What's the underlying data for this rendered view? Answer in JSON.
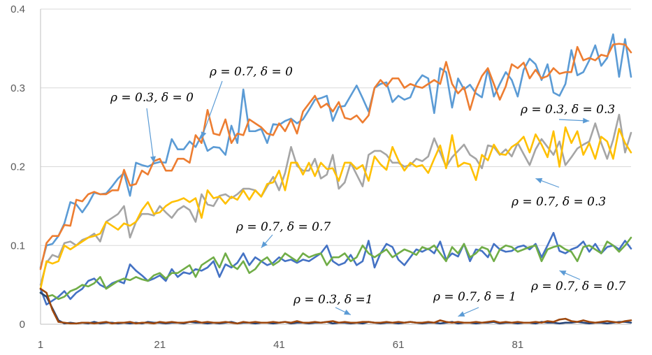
{
  "chart_data": {
    "type": "line",
    "x_start": 1,
    "x_count": 100,
    "x_ticks": [
      "1",
      "21",
      "41",
      "61",
      "81"
    ],
    "y_ticks": [
      "0",
      "0.1",
      "0.2",
      "0.3",
      "0.4"
    ],
    "ylim": [
      0,
      0.4
    ],
    "grid": true,
    "legend": "none",
    "series": [
      {
        "color": "#5b9bd5",
        "values": [
          0.072,
          0.1,
          0.102,
          0.112,
          0.128,
          0.155,
          0.152,
          0.142,
          0.153,
          0.167,
          0.165,
          0.166,
          0.175,
          0.185,
          0.192,
          0.163,
          0.205,
          0.202,
          0.2,
          0.204,
          0.206,
          0.205,
          0.235,
          0.222,
          0.222,
          0.232,
          0.225,
          0.24,
          0.22,
          0.225,
          0.224,
          0.215,
          0.252,
          0.23,
          0.298,
          0.245,
          0.245,
          0.248,
          0.23,
          0.254,
          0.253,
          0.258,
          0.261,
          0.255,
          0.26,
          0.272,
          0.285,
          0.287,
          0.29,
          0.258,
          0.276,
          0.277,
          0.29,
          0.303,
          0.287,
          0.27,
          0.3,
          0.305,
          0.307,
          0.282,
          0.29,
          0.285,
          0.288,
          0.306,
          0.316,
          0.312,
          0.268,
          0.325,
          0.32,
          0.275,
          0.312,
          0.298,
          0.304,
          0.293,
          0.288,
          0.324,
          0.289,
          0.305,
          0.32,
          0.31,
          0.289,
          0.323,
          0.337,
          0.33,
          0.31,
          0.33,
          0.294,
          0.29,
          0.305,
          0.348,
          0.316,
          0.32,
          0.335,
          0.354,
          0.328,
          0.338,
          0.368,
          0.314,
          0.362,
          0.314
        ]
      },
      {
        "color": "#ed7d31",
        "values": [
          0.07,
          0.103,
          0.112,
          0.112,
          0.126,
          0.125,
          0.158,
          0.156,
          0.165,
          0.168,
          0.165,
          0.165,
          0.17,
          0.17,
          0.196,
          0.176,
          0.178,
          0.195,
          0.19,
          0.207,
          0.21,
          0.195,
          0.195,
          0.21,
          0.21,
          0.205,
          0.24,
          0.23,
          0.272,
          0.242,
          0.24,
          0.26,
          0.23,
          0.242,
          0.24,
          0.26,
          0.255,
          0.25,
          0.242,
          0.24,
          0.255,
          0.245,
          0.26,
          0.242,
          0.27,
          0.28,
          0.29,
          0.275,
          0.28,
          0.27,
          0.282,
          0.262,
          0.26,
          0.265,
          0.256,
          0.265,
          0.3,
          0.31,
          0.302,
          0.312,
          0.312,
          0.3,
          0.305,
          0.302,
          0.3,
          0.305,
          0.31,
          0.305,
          0.333,
          0.305,
          0.293,
          0.301,
          0.272,
          0.298,
          0.315,
          0.325,
          0.305,
          0.285,
          0.302,
          0.33,
          0.325,
          0.332,
          0.312,
          0.323,
          0.312,
          0.315,
          0.325,
          0.318,
          0.32,
          0.32,
          0.352,
          0.335,
          0.338,
          0.335,
          0.342,
          0.34,
          0.355,
          0.356,
          0.355,
          0.345
        ]
      },
      {
        "color": "#a5a5a5",
        "values": [
          0.05,
          0.078,
          0.088,
          0.085,
          0.103,
          0.105,
          0.1,
          0.107,
          0.11,
          0.115,
          0.105,
          0.13,
          0.135,
          0.14,
          0.15,
          0.11,
          0.13,
          0.14,
          0.14,
          0.138,
          0.15,
          0.142,
          0.135,
          0.145,
          0.15,
          0.145,
          0.13,
          0.165,
          0.152,
          0.15,
          0.163,
          0.165,
          0.16,
          0.165,
          0.172,
          0.172,
          0.17,
          0.162,
          0.175,
          0.187,
          0.17,
          0.192,
          0.225,
          0.201,
          0.195,
          0.195,
          0.21,
          0.185,
          0.19,
          0.215,
          0.172,
          0.18,
          0.205,
          0.19,
          0.175,
          0.215,
          0.22,
          0.22,
          0.215,
          0.205,
          0.205,
          0.2,
          0.202,
          0.21,
          0.207,
          0.213,
          0.236,
          0.218,
          0.2,
          0.212,
          0.22,
          0.228,
          0.215,
          0.21,
          0.198,
          0.227,
          0.225,
          0.215,
          0.222,
          0.213,
          0.23,
          0.216,
          0.202,
          0.222,
          0.235,
          0.225,
          0.215,
          0.232,
          0.202,
          0.212,
          0.223,
          0.228,
          0.232,
          0.255,
          0.23,
          0.21,
          0.234,
          0.266,
          0.218,
          0.243
        ]
      },
      {
        "color": "#ffc000",
        "values": [
          0.045,
          0.08,
          0.077,
          0.08,
          0.1,
          0.095,
          0.1,
          0.105,
          0.11,
          0.112,
          0.115,
          0.13,
          0.125,
          0.12,
          0.128,
          0.125,
          0.13,
          0.145,
          0.155,
          0.14,
          0.142,
          0.15,
          0.155,
          0.157,
          0.16,
          0.155,
          0.16,
          0.135,
          0.17,
          0.16,
          0.162,
          0.153,
          0.162,
          0.158,
          0.17,
          0.158,
          0.17,
          0.162,
          0.178,
          0.18,
          0.195,
          0.17,
          0.205,
          0.205,
          0.19,
          0.205,
          0.188,
          0.205,
          0.197,
          0.198,
          0.182,
          0.205,
          0.205,
          0.197,
          0.202,
          0.182,
          0.213,
          0.203,
          0.196,
          0.225,
          0.208,
          0.195,
          0.205,
          0.2,
          0.202,
          0.192,
          0.21,
          0.227,
          0.198,
          0.24,
          0.2,
          0.205,
          0.203,
          0.183,
          0.215,
          0.208,
          0.228,
          0.216,
          0.215,
          0.225,
          0.23,
          0.238,
          0.218,
          0.241,
          0.228,
          0.212,
          0.245,
          0.2,
          0.25,
          0.23,
          0.245,
          0.215,
          0.23,
          0.21,
          0.238,
          0.232,
          0.21,
          0.248,
          0.23,
          0.218
        ]
      },
      {
        "color": "#4472c4",
        "values": [
          0.045,
          0.025,
          0.03,
          0.035,
          0.042,
          0.032,
          0.04,
          0.045,
          0.055,
          0.058,
          0.05,
          0.046,
          0.052,
          0.055,
          0.052,
          0.076,
          0.068,
          0.062,
          0.055,
          0.058,
          0.062,
          0.055,
          0.07,
          0.06,
          0.066,
          0.064,
          0.07,
          0.068,
          0.072,
          0.08,
          0.06,
          0.076,
          0.072,
          0.078,
          0.09,
          0.075,
          0.085,
          0.08,
          0.075,
          0.078,
          0.085,
          0.08,
          0.082,
          0.078,
          0.082,
          0.08,
          0.085,
          0.09,
          0.1,
          0.08,
          0.075,
          0.078,
          0.088,
          0.075,
          0.08,
          0.106,
          0.072,
          0.09,
          0.102,
          0.098,
          0.082,
          0.075,
          0.085,
          0.095,
          0.092,
          0.096,
          0.09,
          0.105,
          0.082,
          0.09,
          0.086,
          0.102,
          0.08,
          0.095,
          0.093,
          0.085,
          0.102,
          0.095,
          0.092,
          0.093,
          0.098,
          0.1,
          0.095,
          0.102,
          0.085,
          0.1,
          0.116,
          0.093,
          0.09,
          0.095,
          0.098,
          0.105,
          0.092,
          0.102,
          0.09,
          0.098,
          0.1,
          0.095,
          0.106,
          0.096
        ]
      },
      {
        "color": "#70ad47",
        "values": [
          0.04,
          0.035,
          0.037,
          0.032,
          0.035,
          0.042,
          0.045,
          0.05,
          0.048,
          0.052,
          0.06,
          0.045,
          0.05,
          0.055,
          0.058,
          0.056,
          0.06,
          0.057,
          0.055,
          0.062,
          0.065,
          0.058,
          0.065,
          0.065,
          0.07,
          0.075,
          0.06,
          0.075,
          0.08,
          0.085,
          0.072,
          0.09,
          0.075,
          0.07,
          0.08,
          0.065,
          0.07,
          0.08,
          0.085,
          0.075,
          0.08,
          0.09,
          0.085,
          0.08,
          0.09,
          0.085,
          0.088,
          0.09,
          0.075,
          0.085,
          0.085,
          0.09,
          0.08,
          0.085,
          0.1,
          0.09,
          0.085,
          0.09,
          0.095,
          0.085,
          0.09,
          0.095,
          0.092,
          0.088,
          0.098,
          0.095,
          0.1,
          0.09,
          0.08,
          0.098,
          0.09,
          0.102,
          0.085,
          0.09,
          0.098,
          0.095,
          0.08,
          0.095,
          0.1,
          0.098,
          0.092,
          0.095,
          0.098,
          0.1,
          0.08,
          0.095,
          0.098,
          0.1,
          0.095,
          0.092,
          0.08,
          0.098,
          0.1,
          0.095,
          0.09,
          0.105,
          0.1,
          0.092,
          0.1,
          0.11
        ]
      },
      {
        "color": "#264478",
        "values": [
          0.04,
          0.035,
          0.02,
          0.005,
          0.001,
          0.002,
          0.001,
          0.002,
          0.001,
          0.003,
          0.001,
          0.002,
          0.002,
          0.001,
          0.002,
          0.001,
          0.002,
          0.001,
          0.003,
          0.002,
          0.002,
          0.001,
          0.002,
          0.002,
          0.001,
          0.003,
          0.002,
          0.002,
          0.001,
          0.002,
          0.001,
          0.002,
          0.003,
          0.001,
          0.002,
          0.002,
          0.001,
          0.002,
          0.002,
          0.001,
          0.002,
          0.003,
          0.001,
          0.002,
          0.002,
          0.001,
          0.002,
          0.002,
          0.003,
          0.001,
          0.002,
          0.002,
          0.001,
          0.002,
          0.001,
          0.003,
          0.002,
          0.001,
          0.002,
          0.002,
          0.001,
          0.002,
          0.003,
          0.002,
          0.001,
          0.002,
          0.002,
          0.001,
          0.002,
          0.003,
          0.001,
          0.002,
          0.002,
          0.001,
          0.002,
          0.002,
          0.003,
          0.001,
          0.002,
          0.002,
          0.001,
          0.002,
          0.002,
          0.001,
          0.003,
          0.002,
          0.002,
          0.001,
          0.002,
          0.002,
          0.003,
          0.002,
          0.001,
          0.002,
          0.002,
          0.001,
          0.002,
          0.003,
          0.003,
          0.002
        ]
      },
      {
        "color": "#9e480e",
        "values": [
          0.045,
          0.04,
          0.018,
          0.003,
          0.002,
          0.001,
          0.001,
          0.002,
          0.002,
          0.001,
          0.002,
          0.003,
          0.001,
          0.002,
          0.002,
          0.003,
          0.001,
          0.002,
          0.002,
          0.001,
          0.003,
          0.002,
          0.003,
          0.002,
          0.002,
          0.003,
          0.004,
          0.002,
          0.003,
          0.002,
          0.002,
          0.003,
          0.002,
          0.001,
          0.003,
          0.002,
          0.003,
          0.002,
          0.002,
          0.003,
          0.002,
          0.003,
          0.002,
          0.004,
          0.002,
          0.002,
          0.003,
          0.002,
          0.003,
          0.004,
          0.002,
          0.003,
          0.002,
          0.002,
          0.003,
          0.003,
          0.002,
          0.002,
          0.003,
          0.002,
          0.003,
          0.002,
          0.003,
          0.002,
          0.002,
          0.003,
          0.002,
          0.005,
          0.003,
          0.002,
          0.003,
          0.002,
          0.002,
          0.003,
          0.002,
          0.003,
          0.004,
          0.002,
          0.003,
          0.002,
          0.003,
          0.002,
          0.002,
          0.003,
          0.002,
          0.004,
          0.003,
          0.006,
          0.007,
          0.004,
          0.003,
          0.005,
          0.003,
          0.002,
          0.003,
          0.004,
          0.003,
          0.002,
          0.004,
          0.005
        ]
      }
    ],
    "annotations": [
      {
        "text": "ρ = 0.7, δ = 0",
        "target_x": 28,
        "target_y": 0.236
      },
      {
        "text": "ρ = 0.3, δ = 0",
        "target_x": 20,
        "target_y": 0.205
      },
      {
        "text": "ρ = 0.3, δ = 0.3",
        "target_x": 93,
        "target_y": 0.258
      },
      {
        "text": "ρ = 0.7, δ = 0.3",
        "target_x": 84,
        "target_y": 0.185
      },
      {
        "text": "ρ = 0.7, δ = 0.7",
        "target_x": 38,
        "target_y": 0.097
      },
      {
        "text": "ρ = 0.7, δ = 0.7",
        "target_x": 88,
        "target_y": 0.068
      },
      {
        "text": "ρ = 0.3, δ =1",
        "target_x": 53,
        "target_y": 0.012
      },
      {
        "text": "ρ = 0.7, δ = 1",
        "target_x": 71,
        "target_y": 0.01
      }
    ]
  }
}
